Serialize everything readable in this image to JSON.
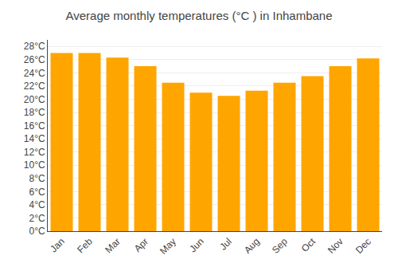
{
  "chart_data": {
    "type": "bar",
    "title": "Average monthly temperatures (°C ) in Inhambane",
    "categories": [
      "Jan",
      "Feb",
      "Mar",
      "Apr",
      "May",
      "Jun",
      "Jul",
      "Aug",
      "Sep",
      "Oct",
      "Nov",
      "Dec"
    ],
    "values": [
      27,
      27,
      26.3,
      25,
      22.5,
      21,
      20.5,
      21.3,
      22.5,
      23.5,
      25,
      26.2
    ],
    "color": "#FFA500",
    "ylim": [
      0,
      29
    ],
    "yticks": [
      {
        "value": 0,
        "label": "0°C"
      },
      {
        "value": 2,
        "label": "2°C"
      },
      {
        "value": 4,
        "label": "4°C"
      },
      {
        "value": 6,
        "label": "6°C"
      },
      {
        "value": 8,
        "label": "8°C"
      },
      {
        "value": 10,
        "label": "10°C"
      },
      {
        "value": 12,
        "label": "12°C"
      },
      {
        "value": 14,
        "label": "14°C"
      },
      {
        "value": 16,
        "label": "16°C"
      },
      {
        "value": 18,
        "label": "18°C"
      },
      {
        "value": 20,
        "label": "20°C"
      },
      {
        "value": 22,
        "label": "22°C"
      },
      {
        "value": 24,
        "label": "24°C"
      },
      {
        "value": 26,
        "label": "26°C"
      },
      {
        "value": 28,
        "label": "28°C"
      }
    ],
    "grid": true
  }
}
